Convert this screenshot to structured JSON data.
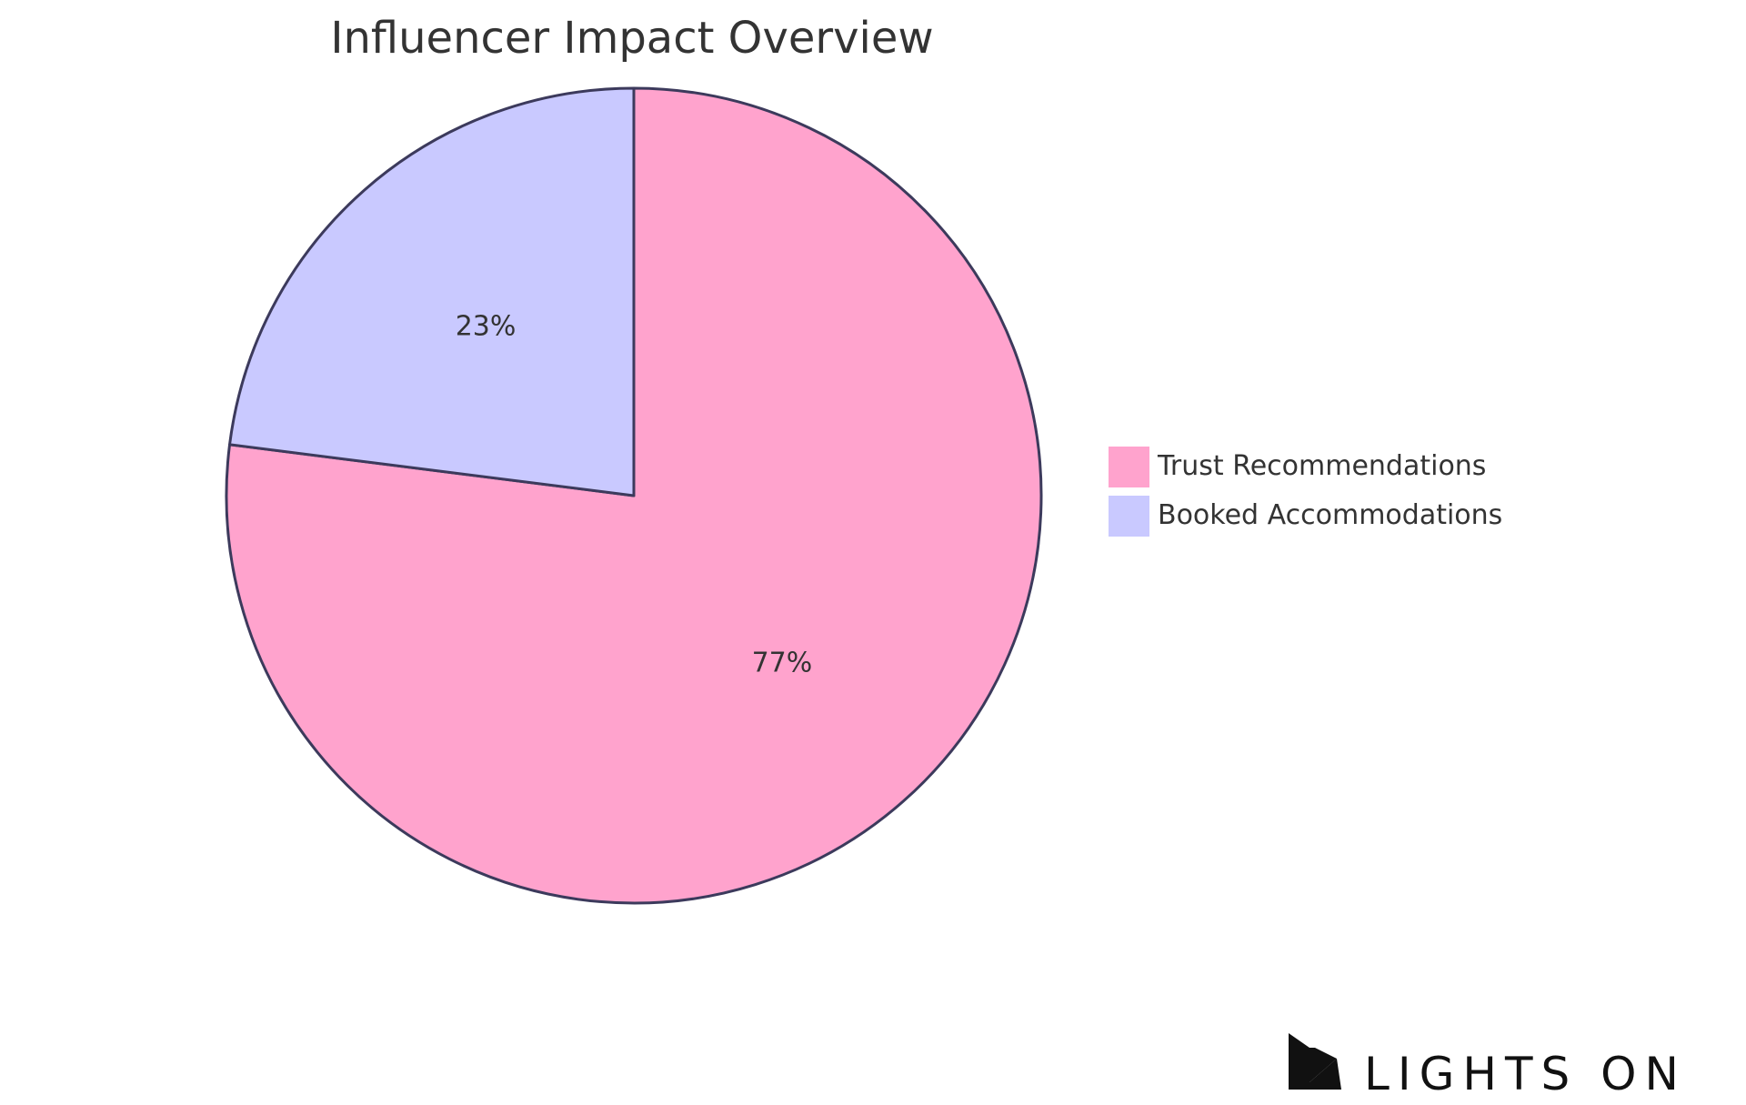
{
  "chart_data": {
    "type": "pie",
    "title": "Influencer Impact Overview",
    "slices": [
      {
        "label": "Trust Recommendations",
        "value": 77,
        "display": "77%",
        "color": "#FFA3CD"
      },
      {
        "label": "Booked Accommodations",
        "value": 23,
        "display": "23%",
        "color": "#C9C9FF"
      }
    ],
    "start": "12 o'clock",
    "direction": "clockwise",
    "stroke_color": "#3C3A5C",
    "legend_position": "right"
  },
  "brand": {
    "name": "LIGHTS ON",
    "logo": "lights-on-logo-icon"
  }
}
